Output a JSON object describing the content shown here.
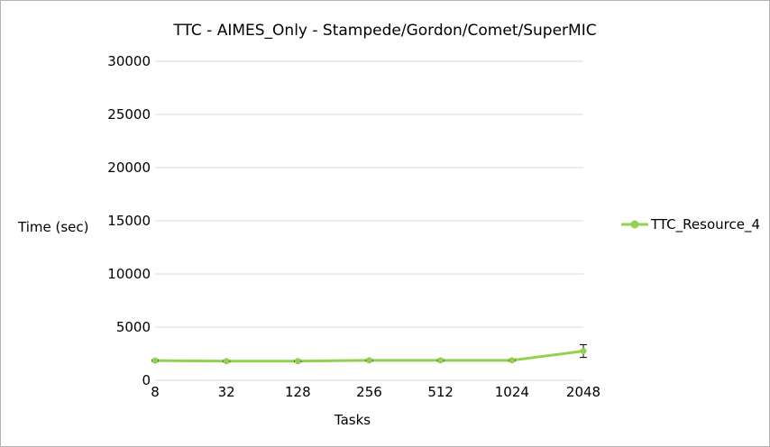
{
  "chart_data": {
    "type": "line",
    "title": "TTC - AIMES_Only - Stampede/Gordon/Comet/SuperMIC",
    "xlabel": "Tasks",
    "ylabel": "Time (sec)",
    "categories": [
      "8",
      "32",
      "128",
      "256",
      "512",
      "1024",
      "2048"
    ],
    "ylim": [
      0,
      30000
    ],
    "yticks": [
      "0",
      "5000",
      "10000",
      "15000",
      "20000",
      "25000",
      "30000"
    ],
    "grid": true,
    "legend_position": "right",
    "series": [
      {
        "name": "TTC_Resource_4",
        "color": "#92d050",
        "values": [
          1850,
          1800,
          1800,
          1880,
          1880,
          1880,
          2750
        ],
        "error": [
          70,
          60,
          60,
          70,
          70,
          70,
          600
        ]
      }
    ]
  }
}
